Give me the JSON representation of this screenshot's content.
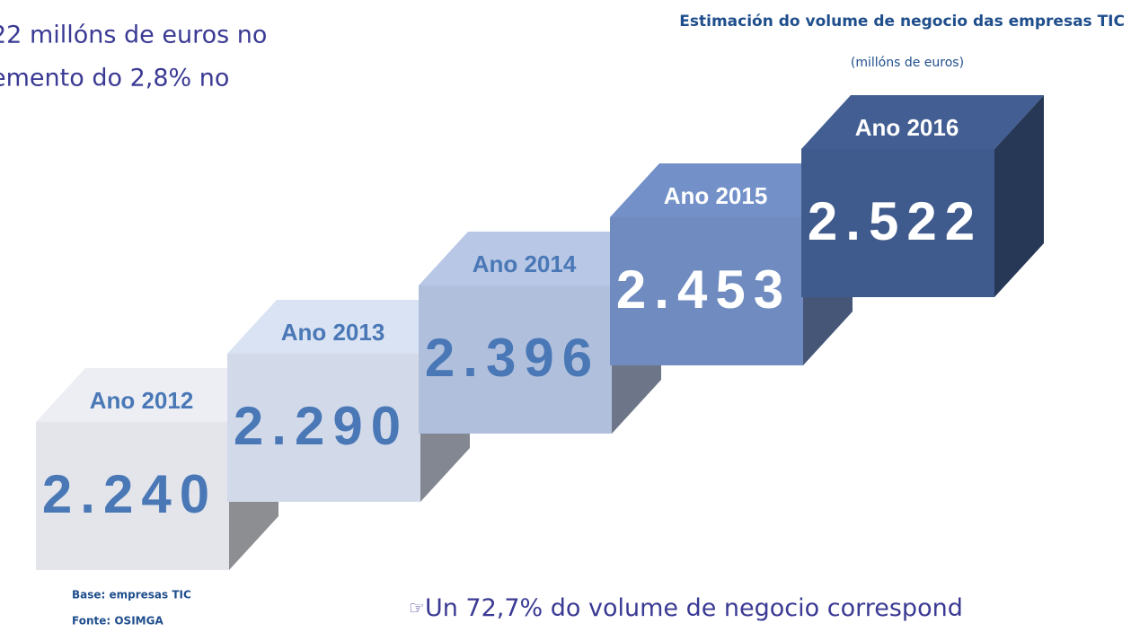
{
  "intro_lines": [
    "22 millóns de euros no",
    "emento do 2,8% no"
  ],
  "chart_data": {
    "type": "cube-steps",
    "title": "Estimación do volume de negocio das empresas TIC",
    "subtitle": "(millóns de euros)",
    "categories": [
      "Ano 2012",
      "Ano 2013",
      "Ano 2014",
      "Ano 2015",
      "Ano 2016"
    ],
    "values": [
      2240,
      2290,
      2396,
      2453,
      2522
    ],
    "value_labels": [
      "2.240",
      "2.290",
      "2.396",
      "2.453",
      "2.522"
    ],
    "colors": [
      "#e3e5eb",
      "#d2daea",
      "#b0bfdc",
      "#6f8bc0",
      "#3f5a8c"
    ],
    "notes": [
      "Base: empresas TIC",
      "Fonte: OSIMGA"
    ]
  },
  "footer_text": "Un 72,7% do volume de negocio correspond"
}
